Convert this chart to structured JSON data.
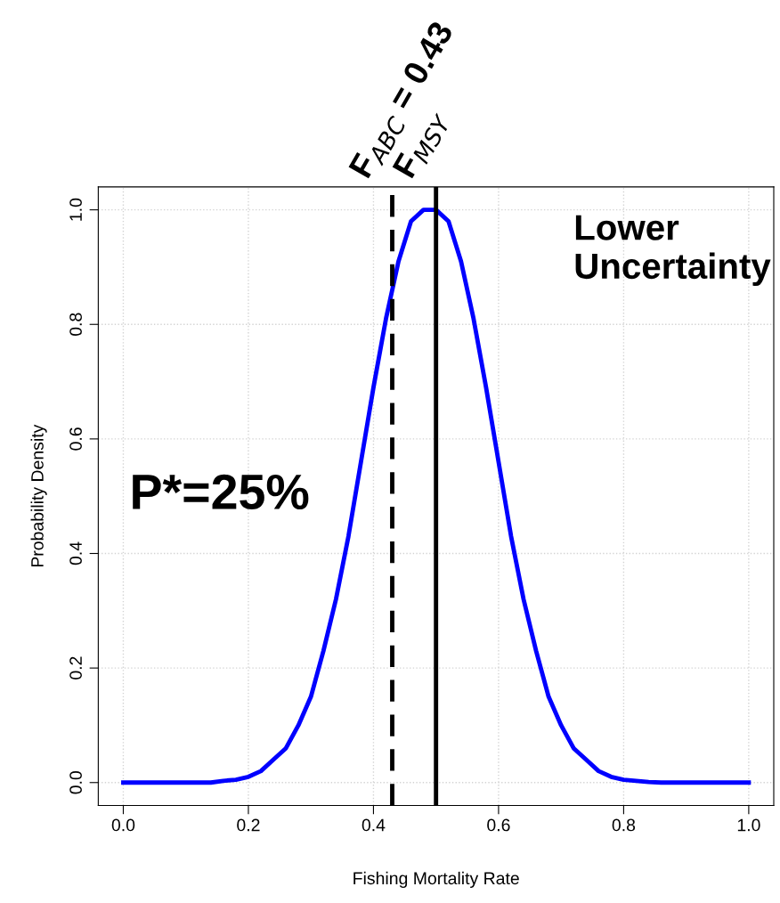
{
  "chart_data": {
    "type": "line",
    "xlabel": "Fishing Mortality Rate",
    "ylabel": "Probability Density",
    "x": [
      0,
      0.1,
      0.14,
      0.16,
      0.18,
      0.2,
      0.22,
      0.24,
      0.26,
      0.28,
      0.3,
      0.32,
      0.34,
      0.36,
      0.38,
      0.4,
      0.42,
      0.44,
      0.46,
      0.48,
      0.5,
      0.52,
      0.54,
      0.56,
      0.58,
      0.6,
      0.62,
      0.64,
      0.66,
      0.68,
      0.7,
      0.72,
      0.74,
      0.76,
      0.78,
      0.8,
      0.82,
      0.84,
      0.86,
      0.9,
      1.0
    ],
    "series": [
      {
        "color": "#0000ff",
        "values": [
          0,
          0,
          0,
          0.003,
          0.005,
          0.01,
          0.02,
          0.04,
          0.06,
          0.1,
          0.15,
          0.23,
          0.32,
          0.43,
          0.56,
          0.69,
          0.81,
          0.91,
          0.98,
          1.0,
          1.0,
          0.98,
          0.91,
          0.81,
          0.69,
          0.56,
          0.43,
          0.32,
          0.23,
          0.15,
          0.1,
          0.06,
          0.04,
          0.02,
          0.01,
          0.005,
          0.003,
          0.001,
          0,
          0,
          0
        ]
      }
    ],
    "xlim": [
      -0.04,
      1.04
    ],
    "ylim": [
      -0.04,
      1.04
    ],
    "xticks": [
      {
        "value": 0,
        "label": "0.0"
      },
      0.2,
      0.4,
      0.6,
      0.8,
      {
        "value": 1,
        "label": "1.0"
      }
    ],
    "yticks": [
      {
        "value": 0,
        "label": "0.0"
      },
      0.2,
      0.4,
      0.6,
      0.8,
      {
        "value": 1,
        "label": "1.0"
      }
    ],
    "grid": true,
    "line_style": "solid",
    "marker": "none",
    "ref_lines": [
      {
        "axis": "x",
        "value": 0.43,
        "label": "F$_{ABC}$ = 0.43",
        "color": "#000000",
        "line_style": "dashed"
      },
      {
        "axis": "x",
        "value": 0.5,
        "label": "F$_{MSY}$",
        "color": "#000000",
        "line_style": "solid"
      }
    ],
    "annotations": [
      "P*=25%",
      "Lower\nUncertainty"
    ]
  }
}
